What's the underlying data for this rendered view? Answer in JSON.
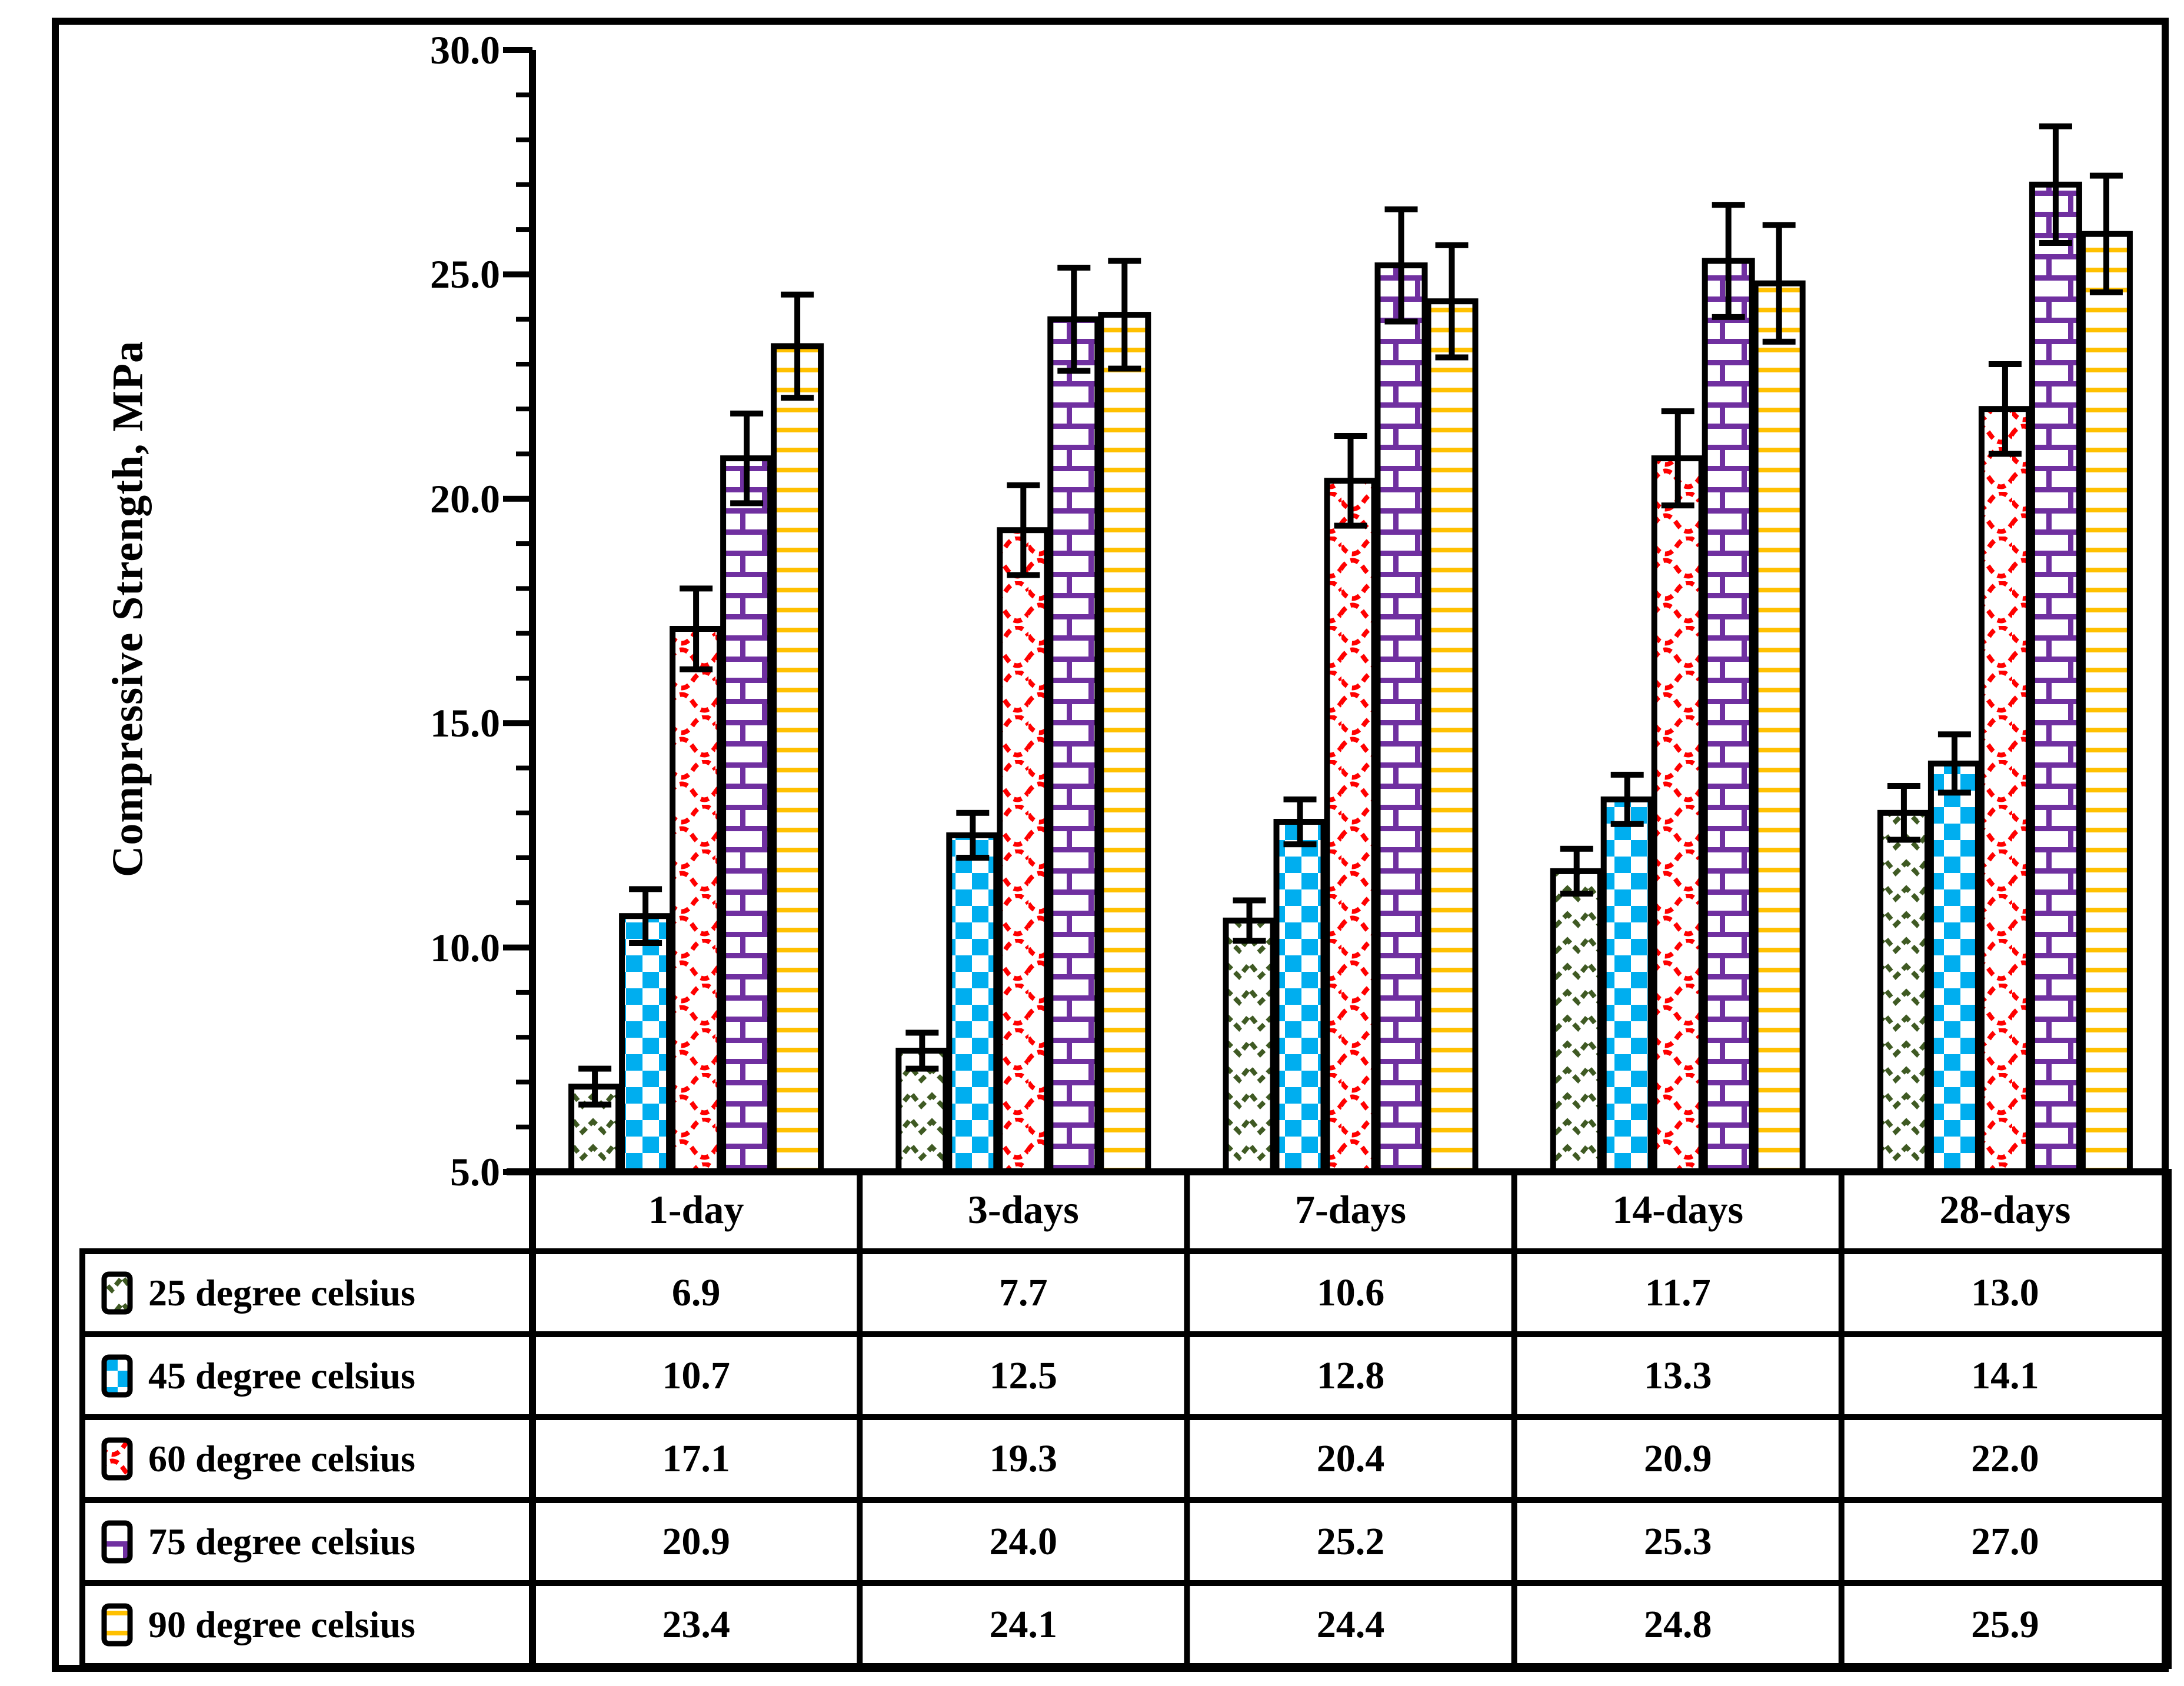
{
  "page": {
    "background": "#ffffff"
  },
  "y_axis": {
    "title": "Compressive Strength, MPa",
    "min": 5,
    "max": 30,
    "major_step": 5,
    "minor_step": 1,
    "tick_labels": [
      "5.0",
      "10.0",
      "15.0",
      "20.0",
      "25.0",
      "30.0"
    ]
  },
  "chart_data": {
    "type": "bar",
    "title": "",
    "xlabel": "",
    "ylabel": "Compressive Strength, MPa",
    "ylim": [
      5,
      30
    ],
    "grid": false,
    "legend_position": "table-left-column",
    "error_bars": true,
    "categories": [
      "1-day",
      "3-days",
      "7-days",
      "14-days",
      "28-days"
    ],
    "series": [
      {
        "name": "25 degree celsius",
        "color": "#3F5A23",
        "pattern": "zigzag-chevron",
        "values": [
          6.9,
          7.7,
          10.6,
          11.7,
          13.0
        ],
        "errors": [
          0.4,
          0.4,
          0.45,
          0.5,
          0.6
        ]
      },
      {
        "name": "45 degree celsius",
        "color": "#00AEEF",
        "pattern": "checkerboard",
        "values": [
          10.7,
          12.5,
          12.8,
          13.3,
          14.1
        ],
        "errors": [
          0.6,
          0.5,
          0.5,
          0.55,
          0.65
        ]
      },
      {
        "name": "60 degree celsius",
        "color": "#FF0000",
        "pattern": "wave-shingle",
        "values": [
          17.1,
          19.3,
          20.4,
          20.9,
          22.0
        ],
        "errors": [
          0.9,
          1.0,
          1.0,
          1.05,
          1.0
        ]
      },
      {
        "name": "75 degree celsius",
        "color": "#7030A0",
        "pattern": "brick",
        "values": [
          20.9,
          24.0,
          25.2,
          25.3,
          27.0
        ],
        "errors": [
          1.0,
          1.15,
          1.25,
          1.25,
          1.3
        ]
      },
      {
        "name": "90 degree celsius",
        "color": "#FFC000",
        "pattern": "horizontal-lines",
        "values": [
          23.4,
          24.1,
          24.4,
          24.8,
          25.9
        ],
        "errors": [
          1.15,
          1.2,
          1.25,
          1.3,
          1.3
        ]
      }
    ]
  }
}
